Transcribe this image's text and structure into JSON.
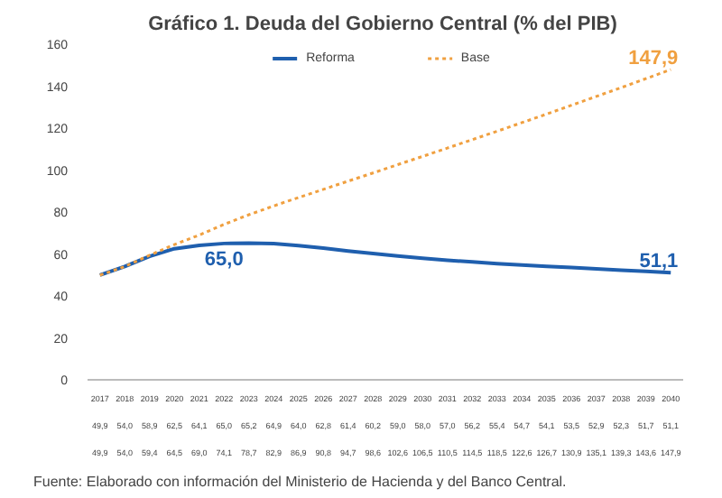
{
  "chart_data": {
    "type": "line",
    "title": "Gráfico 1.  Deuda del Gobierno Central (% del PIB)",
    "categories": [
      "2017",
      "2018",
      "2019",
      "2020",
      "2021",
      "2022",
      "2023",
      "2024",
      "2025",
      "2026",
      "2027",
      "2028",
      "2029",
      "2030",
      "2031",
      "2032",
      "2033",
      "2034",
      "2035",
      "2036",
      "2037",
      "2038",
      "2039",
      "2040"
    ],
    "series": [
      {
        "name": "Reforma",
        "color": "#1f5fae",
        "line_style": "solid",
        "values": [
          49.9,
          54.0,
          58.9,
          62.5,
          64.1,
          65.0,
          65.2,
          64.9,
          64.0,
          62.8,
          61.4,
          60.2,
          59.0,
          58.0,
          57.0,
          56.2,
          55.4,
          54.7,
          54.1,
          53.5,
          52.9,
          52.3,
          51.7,
          51.1
        ],
        "value_labels": [
          "49,9",
          "54,0",
          "58,9",
          "62,5",
          "64,1",
          "65,0",
          "65,2",
          "64,9",
          "64,0",
          "62,8",
          "61,4",
          "60,2",
          "59,0",
          "58,0",
          "57,0",
          "56,2",
          "55,4",
          "54,7",
          "54,1",
          "53,5",
          "52,9",
          "52,3",
          "51,7",
          "51,1"
        ]
      },
      {
        "name": "Base",
        "color": "#f0a040",
        "line_style": "dotted",
        "values": [
          49.9,
          54.0,
          59.4,
          64.5,
          69.0,
          74.1,
          78.7,
          82.9,
          86.9,
          90.8,
          94.7,
          98.6,
          102.6,
          106.5,
          110.5,
          114.5,
          118.5,
          122.6,
          126.7,
          130.9,
          135.1,
          139.3,
          143.6,
          147.9
        ],
        "value_labels": [
          "49,9",
          "54,0",
          "59,4",
          "64,5",
          "69,0",
          "74,1",
          "78,7",
          "82,9",
          "86,9",
          "90,8",
          "94,7",
          "98,6",
          "102,6",
          "106,5",
          "110,5",
          "114,5",
          "118,5",
          "122,6",
          "126,7",
          "130,9",
          "135,1",
          "139,3",
          "143,6",
          "147,9"
        ]
      }
    ],
    "ylim": [
      0,
      160
    ],
    "yticks": [
      0,
      20,
      40,
      60,
      80,
      100,
      120,
      140,
      160
    ],
    "legend": "top",
    "grid": false,
    "annotations": [
      {
        "text": "65,0",
        "x": "2022",
        "y": 65.0
      },
      {
        "text": "51,1",
        "x": "2040",
        "y": 51.1
      },
      {
        "text": "147,9",
        "x": "2040",
        "y": 147.9
      },
      "Fuente: Elaborado con información del Ministerio de Hacienda y del Banco Central."
    ]
  }
}
